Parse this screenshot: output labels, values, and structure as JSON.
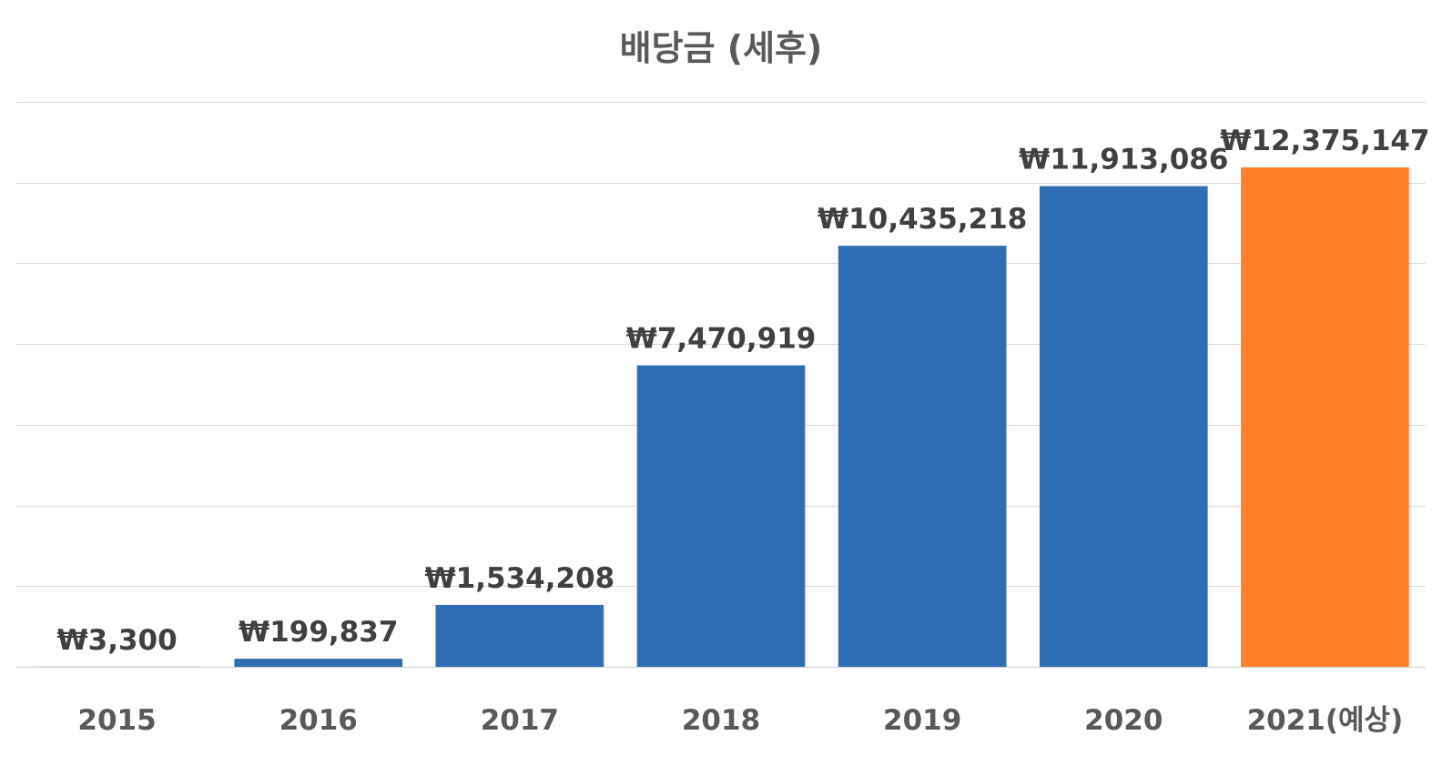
{
  "colors": {
    "actual_bar": "#306EB4",
    "forecast_bar": "#FF7F27",
    "gridline": "#D9D9D9",
    "text": "#404040"
  },
  "chart_data": {
    "type": "bar",
    "title": "배당금 (세후)",
    "xlabel": "",
    "ylabel": "",
    "categories": [
      "2015",
      "2016",
      "2017",
      "2018",
      "2019",
      "2020",
      "2021(예상)"
    ],
    "values": [
      3300,
      199837,
      1534208,
      7470919,
      10435218,
      11913086,
      12375147
    ],
    "data_labels": [
      "₩3,300",
      "₩199,837",
      "₩1,534,208",
      "₩7,470,919",
      "₩10,435,218",
      "₩11,913,086",
      "₩12,375,147"
    ],
    "bar_colors": [
      "#306EB4",
      "#306EB4",
      "#306EB4",
      "#306EB4",
      "#306EB4",
      "#306EB4",
      "#FF7F27"
    ],
    "ylim": [
      0,
      14000000
    ],
    "y_gridline_step": 2000000,
    "y_axis_labels_shown": false,
    "grid": true,
    "legend": "none"
  }
}
